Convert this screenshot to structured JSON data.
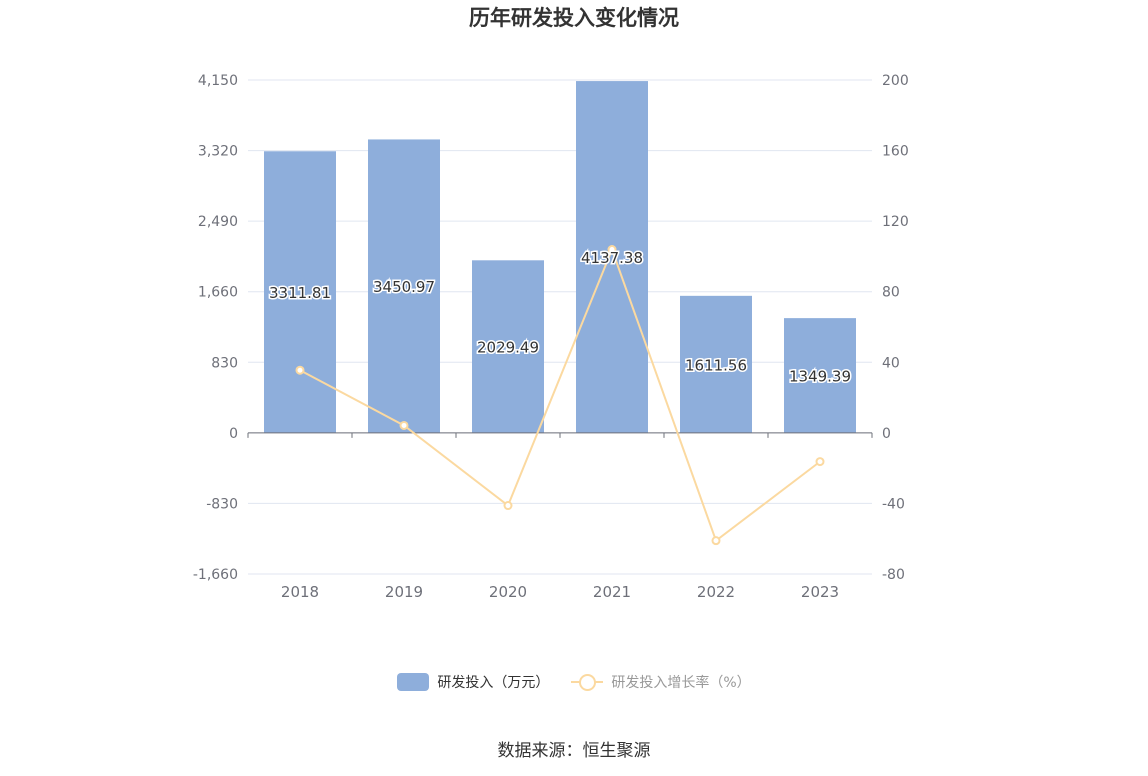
{
  "title": "历年研发投入变化情况",
  "source": "数据来源：恒生聚源",
  "chart_data": {
    "type": "bar",
    "categories": [
      "2018",
      "2019",
      "2020",
      "2021",
      "2022",
      "2023"
    ],
    "series": [
      {
        "name": "研发投入（万元）",
        "type": "bar",
        "axis": "left",
        "values": [
          3311.81,
          3450.97,
          2029.49,
          4137.38,
          1611.56,
          1349.39
        ],
        "labels": [
          "3311.81",
          "3450.97",
          "2029.49",
          "4137.38",
          "1611.56",
          "1349.39"
        ],
        "color": "#8eaedb"
      },
      {
        "name": "研发投入增长率（%）",
        "type": "line",
        "axis": "right",
        "values": [
          35.5,
          4.2,
          -41.2,
          103.9,
          -61.1,
          -16.3
        ],
        "color": "#fbd9a0"
      }
    ],
    "y_left": {
      "ticks": [
        "4,150",
        "3,320",
        "2,490",
        "1,660",
        "830",
        "0",
        "-830",
        "-1,660"
      ],
      "range": [
        -1660,
        4150
      ]
    },
    "y_right": {
      "ticks": [
        "200",
        "160",
        "120",
        "80",
        "40",
        "0",
        "-40",
        "-80"
      ],
      "range": [
        -80,
        200
      ]
    },
    "grid": true,
    "legend_position": "bottom"
  }
}
